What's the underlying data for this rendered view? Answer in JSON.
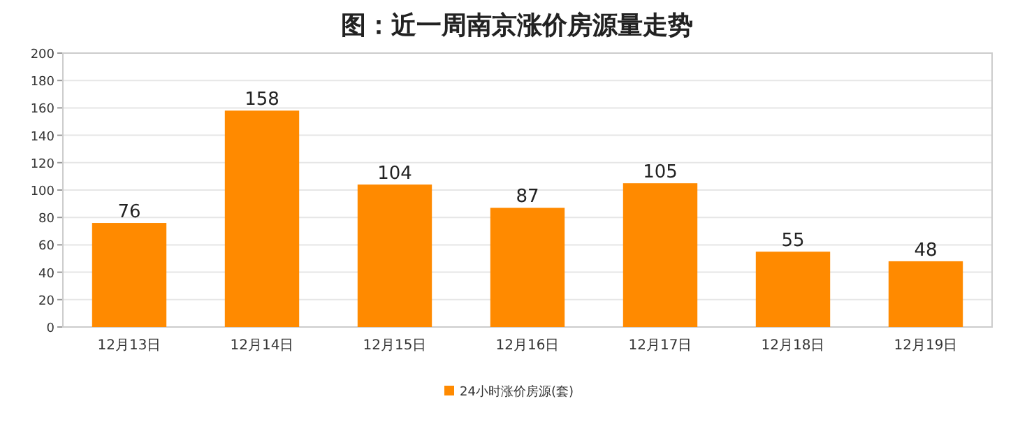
{
  "chart_data": {
    "type": "bar",
    "title": "图：近一周南京涨价房源量走势",
    "categories": [
      "12月13日",
      "12月14日",
      "12月15日",
      "12月16日",
      "12月17日",
      "12月18日",
      "12月19日"
    ],
    "series": [
      {
        "name": "24小时涨价房源(套)",
        "color": "#ff8a00",
        "values": [
          76,
          158,
          104,
          87,
          105,
          55,
          48
        ]
      }
    ],
    "ylim": [
      0,
      200
    ],
    "yticks": [
      0,
      20,
      40,
      60,
      80,
      100,
      120,
      140,
      160,
      180,
      200
    ],
    "grid": "y",
    "legend": "bottom",
    "data_labels": true
  }
}
